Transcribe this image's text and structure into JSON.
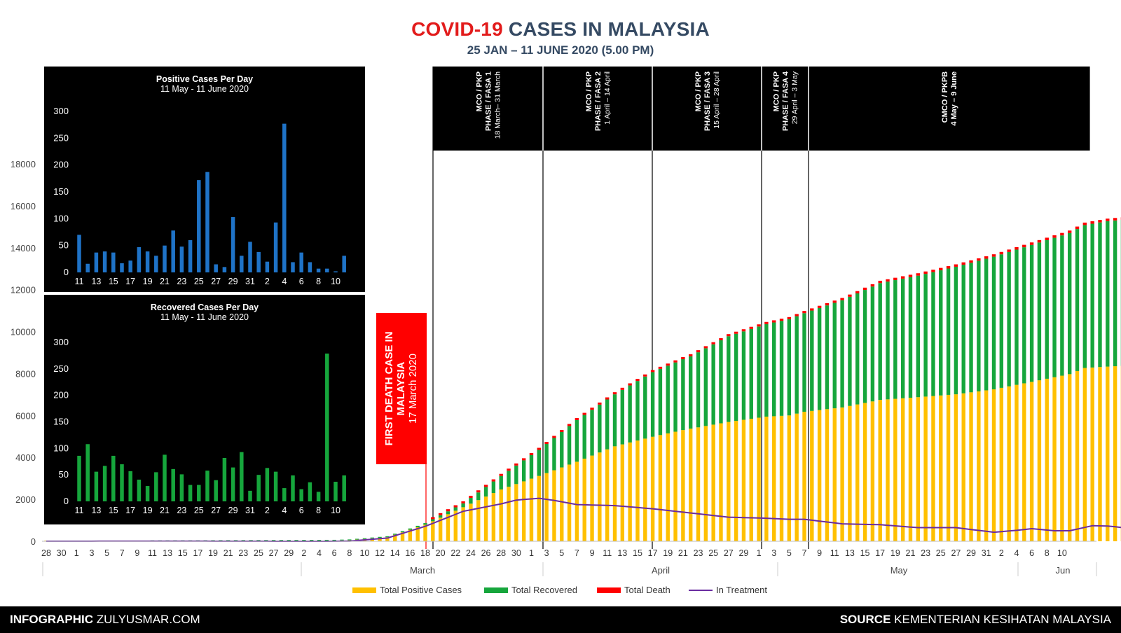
{
  "header": {
    "title_red": "COVID-19",
    "title_rest": "CASES IN MALAYSIA",
    "subtitle": "25 JAN – 11 JUNE 2020 (5.00 PM)"
  },
  "colors": {
    "positive": "#ffc000",
    "recovered": "#16a63c",
    "death": "#ff0000",
    "treatment": "#6a2ca0",
    "inset_positive": "#1f73c7",
    "inset_recovered": "#16a63c"
  },
  "phases": [
    {
      "line1": "MCO / PKP",
      "line2": "PHASE / FASA 1",
      "line3": "18 March– 31 March"
    },
    {
      "line1": "MCO / PKP",
      "line2": "PHASE / FASA 2",
      "line3": "1 April – 14 April"
    },
    {
      "line1": "MCO / PKP",
      "line2": "PHASE / FASA 3",
      "line3": "15 April – 28 April"
    },
    {
      "line1": "MCO / PKP",
      "line2": "PHASE / FASA 4",
      "line3": "29 April – 3 May"
    },
    {
      "line1": "CMCO / PKPB",
      "line2": "4 May – 9 June",
      "line3": ""
    }
  ],
  "death_note": {
    "line1": "FIRST DEATH CASE IN",
    "line2": "MALAYSIA",
    "line3": "17 March 2020"
  },
  "legend": {
    "positive": "Total Positive Cases",
    "recovered": "Total Recovered",
    "death": "Total Death",
    "treatment": "In Treatment"
  },
  "footer": {
    "left_bold": "INFOGRAPHIC",
    "left_rest": "ZULYUSMAR.COM",
    "right_bold": "SOURCE",
    "right_rest": "KEMENTERIAN KESIHATAN MALAYSIA"
  },
  "chart_data": [
    {
      "type": "bar",
      "title": "COVID-19 CASES IN MALAYSIA",
      "stacked": true,
      "ylim": [
        0,
        18000
      ],
      "yticks": [
        0,
        2000,
        4000,
        6000,
        8000,
        10000,
        12000,
        14000,
        16000,
        18000
      ],
      "x_tick_labels": [
        "28",
        "30",
        "1",
        "3",
        "5",
        "7",
        "9",
        "11",
        "13",
        "15",
        "17",
        "19",
        "21",
        "23",
        "25",
        "27",
        "29",
        "2",
        "4",
        "6",
        "8",
        "10",
        "12",
        "14",
        "16",
        "18",
        "20",
        "22",
        "24",
        "26",
        "28",
        "30",
        "1",
        "3",
        "5",
        "7",
        "9",
        "11",
        "13",
        "15",
        "17",
        "19",
        "21",
        "23",
        "25",
        "27",
        "29",
        "1",
        "3",
        "5",
        "7",
        "9",
        "11",
        "13",
        "15",
        "17",
        "19",
        "21",
        "23",
        "25",
        "27",
        "29",
        "31",
        "2",
        "4",
        "6",
        "8",
        "10"
      ],
      "months": [
        "March",
        "April",
        "May",
        "Jun"
      ],
      "series": [
        {
          "name": "Total Positive Cases",
          "anchors": [
            [
              0,
              4
            ],
            [
              6,
              7
            ],
            [
              20,
              22
            ],
            [
              24,
              25
            ],
            [
              37,
              25
            ],
            [
              40,
              50
            ],
            [
              45,
              197
            ],
            [
              47,
              428
            ],
            [
              50,
              790
            ],
            [
              55,
              1624
            ],
            [
              60,
              2470
            ],
            [
              65,
              3116
            ],
            [
              70,
              3793
            ],
            [
              75,
              4530
            ],
            [
              80,
              4987
            ],
            [
              84,
              5305
            ],
            [
              90,
              5691
            ],
            [
              95,
              5945
            ],
            [
              98,
              6002
            ],
            [
              100,
              6176
            ],
            [
              105,
              6383
            ],
            [
              110,
              6742
            ],
            [
              115,
              6872
            ],
            [
              120,
              7009
            ],
            [
              125,
              7245
            ],
            [
              130,
              7604
            ],
            [
              135,
              7970
            ],
            [
              137,
              8266
            ],
            [
              140,
              8329
            ],
            [
              144,
              8402
            ],
            [
              146,
              8402
            ]
          ]
        },
        {
          "name": "Total Recovered",
          "anchors": [
            [
              0,
              0
            ],
            [
              20,
              15
            ],
            [
              24,
              22
            ],
            [
              45,
              42
            ],
            [
              50,
              75
            ],
            [
              55,
              183
            ],
            [
              60,
              645
            ],
            [
              65,
              1241
            ],
            [
              70,
              1987
            ],
            [
              75,
              2478
            ],
            [
              80,
              3081
            ],
            [
              85,
              3452
            ],
            [
              90,
              4087
            ],
            [
              95,
              4413
            ],
            [
              100,
              4702
            ],
            [
              105,
              5113
            ],
            [
              110,
              5571
            ],
            [
              115,
              5796
            ],
            [
              120,
              6083
            ],
            [
              125,
              6327
            ],
            [
              130,
              6530
            ],
            [
              135,
              6731
            ],
            [
              140,
              6940
            ],
            [
              144,
              6993
            ],
            [
              145,
              7104
            ],
            [
              146,
              7125
            ]
          ]
        },
        {
          "name": "Total Death",
          "anchors": [
            [
              0,
              0
            ],
            [
              50,
              0
            ],
            [
              51,
              2
            ],
            [
              55,
              14
            ],
            [
              60,
              43
            ],
            [
              65,
              61
            ],
            [
              70,
              73
            ],
            [
              75,
              82
            ],
            [
              80,
              89
            ],
            [
              85,
              96
            ],
            [
              90,
              101
            ],
            [
              95,
              103
            ],
            [
              100,
              105
            ],
            [
              105,
              107
            ],
            [
              110,
              112
            ],
            [
              115,
              115
            ],
            [
              120,
              115
            ],
            [
              125,
              115
            ],
            [
              130,
              118
            ],
            [
              135,
              118
            ],
            [
              140,
              118
            ],
            [
              146,
              121
            ]
          ]
        },
        {
          "name": "In Treatment",
          "anchors": [
            [
              0,
              4
            ],
            [
              20,
              7
            ],
            [
              24,
              3
            ],
            [
              37,
              0
            ],
            [
              40,
              8
            ],
            [
              45,
              155
            ],
            [
              50,
              713
            ],
            [
              55,
              1430
            ],
            [
              60,
              1782
            ],
            [
              62,
              1964
            ],
            [
              65,
              2050
            ],
            [
              67,
              1950
            ],
            [
              70,
              1750
            ],
            [
              75,
              1700
            ],
            [
              80,
              1550
            ],
            [
              84,
              1390
            ],
            [
              90,
              1150
            ],
            [
              95,
              1100
            ],
            [
              98,
              1050
            ],
            [
              100,
              1050
            ],
            [
              105,
              830
            ],
            [
              110,
              790
            ],
            [
              115,
              650
            ],
            [
              120,
              650
            ],
            [
              125,
              430
            ],
            [
              128,
              520
            ],
            [
              130,
              600
            ],
            [
              133,
              500
            ],
            [
              135,
              500
            ],
            [
              138,
              740
            ],
            [
              140,
              729
            ],
            [
              143,
              611
            ],
            [
              144,
              450
            ],
            [
              146,
              430
            ]
          ]
        }
      ]
    },
    {
      "type": "bar",
      "title": "Positive Cases Per Day",
      "subtitle": "11 May - 11 June 2020",
      "categories": [
        "11",
        "12",
        "13",
        "14",
        "15",
        "16",
        "17",
        "18",
        "19",
        "20",
        "21",
        "22",
        "23",
        "24",
        "25",
        "26",
        "27",
        "28",
        "29",
        "30",
        "31",
        "1",
        "2",
        "3",
        "4",
        "5",
        "6",
        "7",
        "8",
        "9",
        "10",
        "11"
      ],
      "x_tick_labels": [
        "11",
        "13",
        "15",
        "17",
        "19",
        "21",
        "23",
        "25",
        "27",
        "29",
        "31",
        "2",
        "4",
        "6",
        "8",
        "10"
      ],
      "values": [
        70,
        16,
        37,
        39,
        37,
        17,
        22,
        47,
        39,
        31,
        50,
        78,
        48,
        60,
        172,
        187,
        15,
        10,
        103,
        31,
        57,
        38,
        20,
        93,
        277,
        19,
        37,
        19,
        7,
        7,
        2,
        31
      ],
      "ylim": [
        0,
        300
      ],
      "yticks": [
        0,
        50,
        100,
        150,
        200,
        250,
        300
      ]
    },
    {
      "type": "bar",
      "title": "Recovered Cases Per Day",
      "subtitle": "11 May - 11 June 2020",
      "categories": [
        "11",
        "12",
        "13",
        "14",
        "15",
        "16",
        "17",
        "18",
        "19",
        "20",
        "21",
        "22",
        "23",
        "24",
        "25",
        "26",
        "27",
        "28",
        "29",
        "30",
        "31",
        "1",
        "2",
        "3",
        "4",
        "5",
        "6",
        "7",
        "8",
        "9",
        "10",
        "11"
      ],
      "x_tick_labels": [
        "11",
        "13",
        "15",
        "17",
        "19",
        "21",
        "23",
        "25",
        "27",
        "29",
        "31",
        "2",
        "4",
        "6",
        "8",
        "10"
      ],
      "values": [
        86,
        108,
        56,
        67,
        86,
        70,
        57,
        41,
        29,
        55,
        88,
        61,
        51,
        31,
        31,
        58,
        40,
        82,
        64,
        93,
        20,
        50,
        63,
        56,
        25,
        49,
        23,
        36,
        18,
        279,
        37,
        49
      ],
      "ylim": [
        0,
        300
      ],
      "yticks": [
        0,
        50,
        100,
        150,
        200,
        250,
        300
      ]
    }
  ]
}
